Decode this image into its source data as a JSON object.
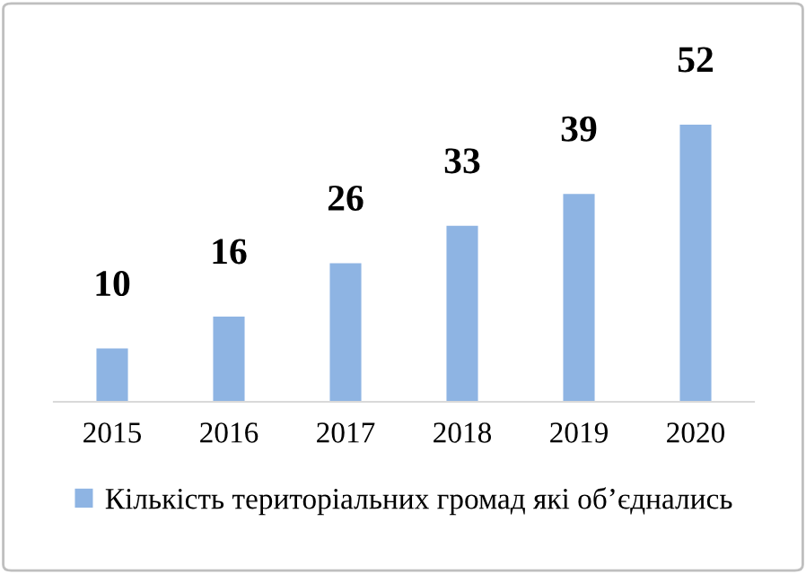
{
  "chart_data": {
    "type": "bar",
    "categories": [
      "2015",
      "2016",
      "2017",
      "2018",
      "2019",
      "2020"
    ],
    "series": [
      {
        "name": "Кількість територіальних громад які об’єднались",
        "color": "#8eb4e3",
        "values": [
          10,
          16,
          26,
          33,
          39,
          52
        ]
      }
    ],
    "data_labels": true,
    "legend": "bottom",
    "grid": false
  }
}
